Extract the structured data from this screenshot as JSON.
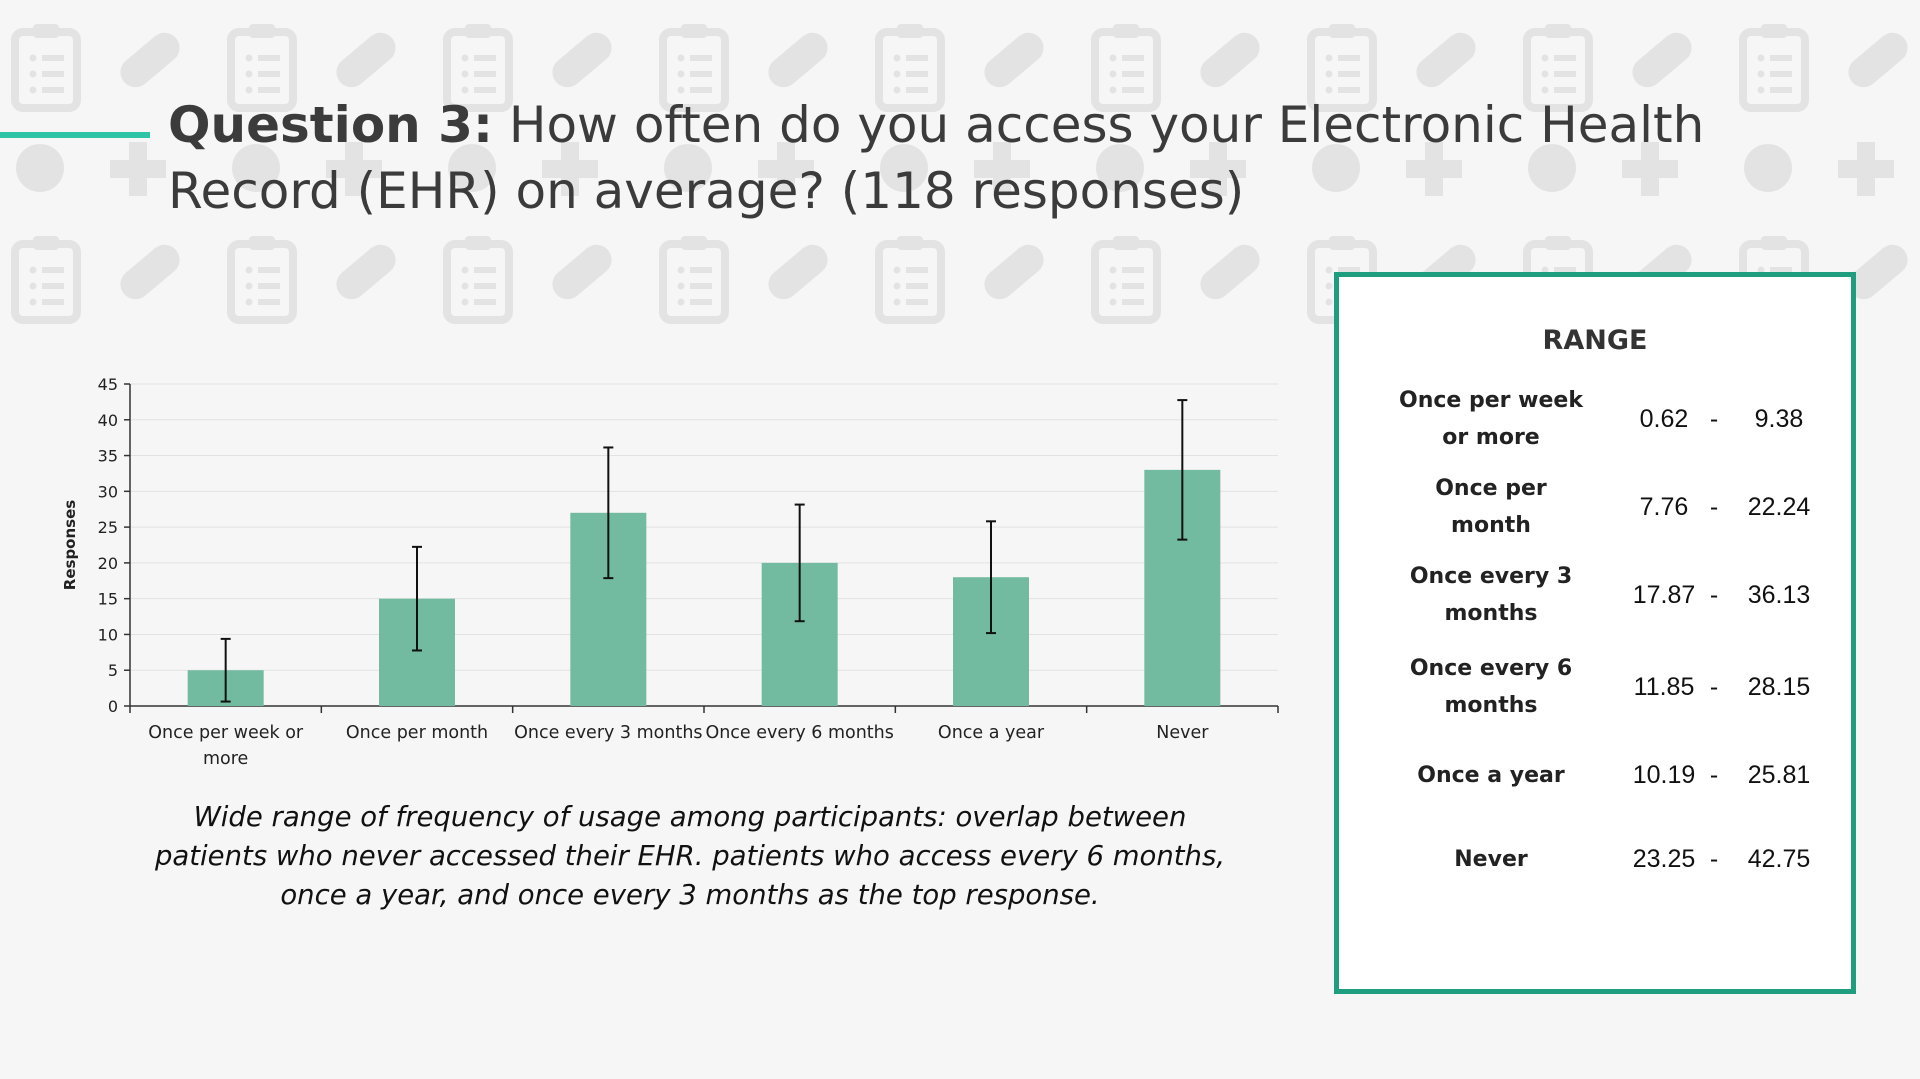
{
  "title": {
    "question": "Question 3:",
    "text": "How often do you access your Electronic Health Record (EHR) on average? (118 responses)"
  },
  "chart_data": {
    "type": "bar",
    "categories": [
      "Once per week or more",
      "Once per month",
      "Once every 3 months",
      "Once every 6 months",
      "Once a year",
      "Never"
    ],
    "values": [
      5,
      15,
      27,
      20,
      18,
      33
    ],
    "error_low": [
      0.62,
      7.76,
      17.87,
      11.85,
      10.19,
      23.25
    ],
    "error_high": [
      9.38,
      22.24,
      36.13,
      28.15,
      25.81,
      42.75
    ],
    "ylabel": "Responses",
    "xlabel": "",
    "ylim": [
      0,
      45
    ],
    "yticks": [
      0,
      5,
      10,
      15,
      20,
      25,
      30,
      35,
      40,
      45
    ],
    "grid": true,
    "bar_color": "#72bba0"
  },
  "caption": "Wide range of frequency of usage among participants: overlap between patients who never accessed their EHR. patients who access every 6 months, once a year, and once every 3 months as the top response.",
  "range_table": {
    "title": "RANGE",
    "separator": "-",
    "rows": [
      {
        "label": "Once per week or more",
        "low": "0.62",
        "high": "9.38"
      },
      {
        "label": "Once per month",
        "low": "7.76",
        "high": "22.24"
      },
      {
        "label": "Once every 3 months",
        "low": "17.87",
        "high": "36.13"
      },
      {
        "label": "Once every 6 months",
        "low": "11.85",
        "high": "28.15"
      },
      {
        "label": "Once a year",
        "low": "10.19",
        "high": "25.81"
      },
      {
        "label": "Never",
        "low": "23.25",
        "high": "42.75"
      }
    ]
  },
  "colors": {
    "accent": "#2ec4a6",
    "border": "#1f9d7f",
    "icon": "#e3e3e3"
  },
  "background_icons": [
    "clipboard-icon",
    "pill-icon",
    "plus-icon"
  ]
}
